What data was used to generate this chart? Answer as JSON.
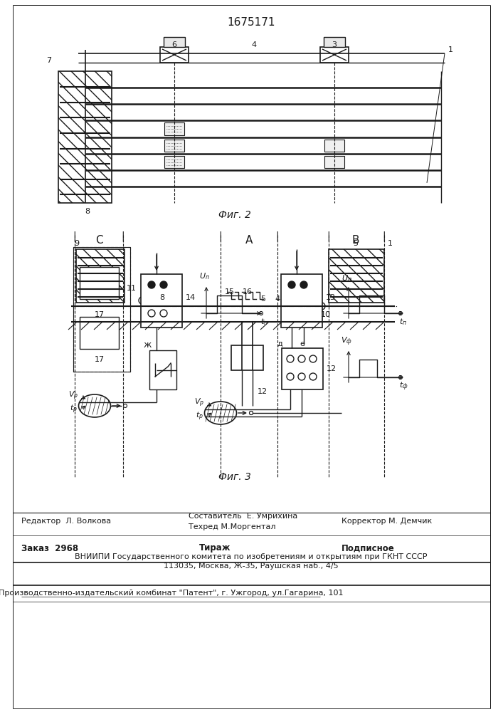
{
  "title": "1675171",
  "fig2_caption": "Фиг. 2",
  "fig3_caption": "Фиг. 3",
  "footer_editor": "Редактор  Л. Волкова",
  "footer_compiler1": "Составитель  Е. Умрихина",
  "footer_compiler2": "Техред М.Моргентал",
  "footer_corrector": "Корректор М. Демчик",
  "footer_order": "Заказ  2968",
  "footer_print": "Тираж",
  "footer_signed": "Подписное",
  "footer_vniipи": "ВНИИПИ Государственного комитета по изобретениям и открытиям при ГКНТ СССР",
  "footer_addr": "113035, Москва, Ж-35, Раушская наб., 4/5",
  "footer_plant": "Производственно-издательский комбинат \"Патент\", г. Ужгород, ул.Гагарина, 101",
  "bg_color": "#ffffff",
  "lc": "#1a1a1a"
}
